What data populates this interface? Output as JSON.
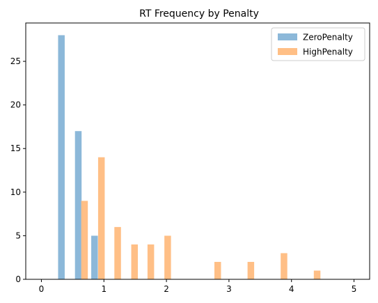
{
  "chart_data": {
    "type": "bar",
    "title": "RT Frequency by Penalty",
    "xlabel": "",
    "ylabel": "",
    "xlim": [
      -0.25,
      5.25
    ],
    "ylim": [
      0,
      29.4
    ],
    "xticks": [
      0,
      1,
      2,
      3,
      4,
      5
    ],
    "yticks": [
      0,
      5,
      10,
      15,
      20,
      25
    ],
    "legend_position": "top-right",
    "grid": false,
    "series": [
      {
        "name": "ZeroPenalty",
        "color": "#8cb8d9",
        "x": [
          0.32,
          0.59,
          0.85
        ],
        "values": [
          28,
          17,
          5
        ]
      },
      {
        "name": "HighPenalty",
        "color": "#ffbf86",
        "x": [
          0.69,
          0.96,
          1.22,
          1.49,
          1.75,
          2.02,
          2.82,
          3.35,
          3.88,
          4.41
        ],
        "values": [
          9,
          14,
          6,
          4,
          4,
          5,
          2,
          2,
          3,
          1
        ]
      }
    ]
  }
}
